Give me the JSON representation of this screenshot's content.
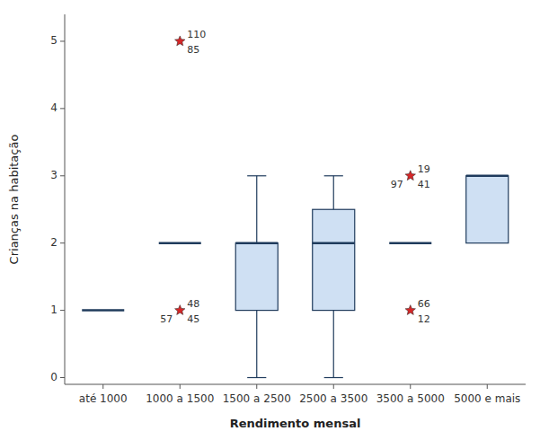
{
  "chart_data": {
    "type": "box",
    "categories": [
      "até 1000",
      "1000 a 1500",
      "1500 a 2500",
      "2500 a 3500",
      "3500 a 5000",
      "5000 e mais"
    ],
    "boxes": [
      {
        "q1": 1.0,
        "median": 1.0,
        "q3": 1.0,
        "whislo": 1.0,
        "whishi": 1.0,
        "outliers": []
      },
      {
        "q1": 2.0,
        "median": 2.0,
        "q3": 2.0,
        "whislo": 2.0,
        "whishi": 2.0,
        "outliers": [
          {
            "y": 5.0,
            "labels": [
              "110",
              "85"
            ]
          },
          {
            "y": 1.0,
            "labels": [
              "48",
              "45",
              "57"
            ]
          }
        ]
      },
      {
        "q1": 1.0,
        "median": 2.0,
        "q3": 2.0,
        "whislo": 0.0,
        "whishi": 3.0,
        "outliers": []
      },
      {
        "q1": 1.0,
        "median": 2.0,
        "q3": 2.5,
        "whislo": 0.0,
        "whishi": 3.0,
        "outliers": []
      },
      {
        "q1": 2.0,
        "median": 2.0,
        "q3": 2.0,
        "whislo": 2.0,
        "whishi": 2.0,
        "outliers": [
          {
            "y": 3.0,
            "labels": [
              "19",
              "41",
              "97"
            ]
          },
          {
            "y": 1.0,
            "labels": [
              "66",
              "12"
            ]
          }
        ]
      },
      {
        "q1": 2.0,
        "median": 3.0,
        "q3": 3.0,
        "whislo": 2.0,
        "whishi": 3.0,
        "outliers": []
      }
    ],
    "ylabel": "Crianças na habitação",
    "xlabel": "Rendimento mensal",
    "ylim": [
      -0.1,
      5.4
    ],
    "yticks": [
      0,
      1,
      2,
      3,
      4,
      5
    ],
    "grid": false
  }
}
